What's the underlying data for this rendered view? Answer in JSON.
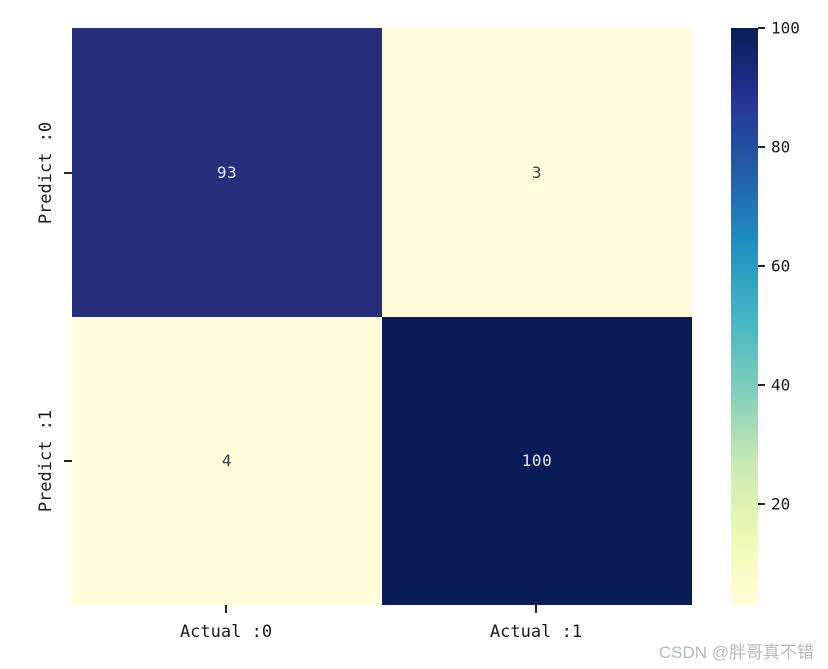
{
  "chart_data": {
    "type": "heatmap",
    "description": "confusion matrix",
    "rows": [
      "Predict :0",
      "Predict :1"
    ],
    "cols": [
      "Actual :0",
      "Actual :1"
    ],
    "values": [
      [
        93,
        3
      ],
      [
        4,
        100
      ]
    ],
    "vmin": 3,
    "vmax": 100,
    "colormap": "YlGnBu",
    "colormap_stops": [
      "#ffffd9",
      "#edf8b1",
      "#c7e9b4",
      "#7fcdbb",
      "#41b6c4",
      "#1d91c0",
      "#225ea8",
      "#253494",
      "#081d58"
    ],
    "cell_colors": [
      [
        "#272f7d",
        "#fffeda"
      ],
      [
        "#fffeda",
        "#0a1c57"
      ]
    ],
    "annot_text_colors": [
      [
        "#e6e8f2",
        "#3a3e49"
      ],
      [
        "#3a3e49",
        "#e6e8f2"
      ]
    ],
    "colorbar_ticks": [
      20,
      40,
      60,
      80,
      100
    ],
    "legend_position": "right",
    "grid": false,
    "title": ""
  },
  "watermark": {
    "text": "CSDN @胖哥真不错",
    "color": "#b5b9c0"
  }
}
